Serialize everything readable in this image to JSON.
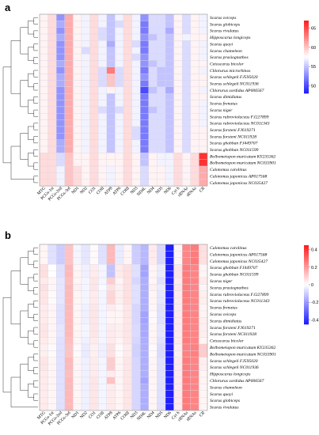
{
  "chart_data": [
    {
      "panel": "a",
      "type": "heatmap",
      "columns": [
        "MTG",
        "PCGs-1st",
        "PCGs-2nd",
        "PCGs-3rd",
        "ND1",
        "ND2",
        "CO1",
        "COII",
        "ATP8",
        "ATP6",
        "COIII",
        "ND3",
        "ND4L",
        "ND4",
        "ND5",
        "ND6",
        "Cyt b",
        "rRNAs",
        "tRNAs",
        "CR"
      ],
      "rows": [
        "Scarus oviceps",
        "Scarus globiceps",
        "Scarus rivulatus",
        "Hipposcarus longiceps",
        "Scarus quoyi",
        "Scarus chameleon",
        "Scarus prasiognathos",
        "Cetoscarus bicolor",
        "Chlorurus microrhinos",
        "Scarus schlegeli FJ595020",
        "Scarus schlegeli NC011936",
        "Chlorurus sordidus AP006567",
        "Scarus dimidiatus",
        "Scarus frenatus",
        "Scarus niger",
        "Scarus rubroviolaceus FJ227899",
        "Scarus rubroviolaceus NC011343",
        "Scarus forsteni FJ619271",
        "Scarus forsteni NC011928",
        "Scarus ghobban FJ449707",
        "Scarus ghobban NC011599",
        "Bolbometopon muricatum KY235362",
        "Bolbometopon muricatum NC033901",
        "Calotomus carolinus",
        "Calotomus japonicus AP017568",
        "Calotomus japonicus NC035427"
      ],
      "colorbar": {
        "ticks": [
          65,
          60,
          55,
          50
        ],
        "min": 48,
        "max": 67,
        "low_color": "#1a1aff",
        "mid_color": "#ffffff",
        "high_color": "#ff1a1a"
      },
      "values": [
        [
          58,
          59,
          53,
          61,
          58,
          57,
          59,
          57,
          55,
          57,
          59,
          57,
          53,
          56,
          56,
          55,
          58,
          56,
          58,
          57
        ],
        [
          58,
          59,
          54,
          61,
          58,
          57,
          59,
          57,
          55,
          56,
          59,
          57,
          52,
          56,
          56,
          55,
          58,
          56,
          58,
          57
        ],
        [
          58,
          59,
          53,
          61,
          58,
          57,
          59,
          56,
          55,
          57,
          59,
          57,
          52,
          56,
          56,
          54,
          58,
          56,
          58,
          57
        ],
        [
          58,
          59,
          54,
          61,
          58,
          57,
          59,
          56,
          55,
          57,
          59,
          57,
          53,
          55,
          56,
          55,
          58,
          57,
          58,
          58
        ],
        [
          58,
          59,
          53,
          61,
          58,
          57,
          59,
          57,
          54,
          57,
          59,
          56,
          52,
          56,
          56,
          55,
          58,
          56,
          58,
          57
        ],
        [
          58,
          59,
          53,
          61,
          58,
          56,
          59,
          57,
          55,
          57,
          59,
          57,
          52,
          56,
          56,
          55,
          58,
          56,
          58,
          57
        ],
        [
          58,
          59,
          53,
          61,
          58,
          57,
          59,
          57,
          55,
          57,
          59,
          56,
          53,
          56,
          56,
          55,
          58,
          56,
          58,
          57
        ],
        [
          58,
          59,
          54,
          61,
          58,
          57,
          59,
          57,
          55,
          57,
          59,
          57,
          53,
          55,
          56,
          55,
          58,
          56,
          58,
          58
        ],
        [
          58,
          59,
          53,
          61,
          58,
          57,
          59,
          56,
          63,
          56,
          59,
          57,
          52,
          56,
          55,
          55,
          58,
          56,
          58,
          57
        ],
        [
          58,
          59,
          54,
          61,
          58,
          57,
          59,
          56,
          60,
          56,
          59,
          57,
          53,
          56,
          55,
          55,
          58,
          56,
          58,
          58
        ],
        [
          58,
          59,
          54,
          61,
          58,
          57,
          59,
          56,
          60,
          56,
          59,
          57,
          52,
          56,
          55,
          55,
          58,
          56,
          58,
          58
        ],
        [
          58,
          59,
          53,
          61,
          58,
          57,
          59,
          57,
          58,
          57,
          59,
          57,
          50,
          55,
          56,
          54,
          58,
          56,
          58,
          57
        ],
        [
          58,
          59,
          53,
          61,
          58,
          57,
          59,
          57,
          55,
          57,
          59,
          57,
          52,
          56,
          56,
          55,
          58,
          56,
          58,
          58
        ],
        [
          58,
          59,
          53,
          61,
          58,
          57,
          59,
          57,
          55,
          57,
          59,
          57,
          52,
          56,
          56,
          55,
          58,
          56,
          58,
          57
        ],
        [
          58,
          59,
          53,
          61,
          58,
          57,
          59,
          56,
          55,
          56,
          59,
          57,
          52,
          55,
          56,
          55,
          58,
          56,
          58,
          57
        ],
        [
          58,
          59,
          53,
          61,
          58,
          57,
          59,
          57,
          55,
          57,
          59,
          57,
          52,
          56,
          56,
          55,
          58,
          56,
          58,
          57
        ],
        [
          58,
          59,
          53,
          61,
          58,
          57,
          59,
          57,
          55,
          57,
          59,
          57,
          52,
          56,
          56,
          55,
          58,
          56,
          58,
          57
        ],
        [
          58,
          59,
          53,
          61,
          58,
          57,
          59,
          57,
          55,
          57,
          59,
          56,
          52,
          56,
          56,
          55,
          58,
          56,
          58,
          58
        ],
        [
          58,
          59,
          53,
          61,
          58,
          57,
          59,
          57,
          55,
          57,
          59,
          56,
          52,
          56,
          56,
          55,
          58,
          56,
          58,
          58
        ],
        [
          58,
          59,
          54,
          61,
          58,
          57,
          59,
          57,
          55,
          57,
          59,
          57,
          52,
          56,
          56,
          55,
          58,
          56,
          58,
          58
        ],
        [
          58,
          59,
          54,
          61,
          58,
          57,
          59,
          57,
          55,
          57,
          59,
          57,
          52,
          56,
          56,
          55,
          58,
          56,
          58,
          58
        ],
        [
          59,
          59,
          56,
          60,
          58,
          58,
          59,
          58,
          58,
          58,
          59,
          58,
          55,
          58,
          57,
          57,
          59,
          58,
          59,
          66
        ],
        [
          59,
          59,
          56,
          60,
          58,
          58,
          59,
          58,
          58,
          58,
          59,
          58,
          55,
          58,
          57,
          57,
          59,
          58,
          59,
          66
        ],
        [
          59,
          59,
          57,
          60,
          59,
          58,
          59,
          58,
          57,
          58,
          59,
          58,
          56,
          58,
          58,
          57,
          59,
          58,
          59,
          61
        ],
        [
          59,
          59,
          57,
          60,
          59,
          58,
          59,
          58,
          57,
          58,
          59,
          58,
          56,
          58,
          58,
          57,
          59,
          58,
          59,
          61
        ],
        [
          59,
          59,
          57,
          60,
          59,
          58,
          59,
          58,
          57,
          58,
          59,
          58,
          56,
          58,
          58,
          57,
          59,
          58,
          59,
          61
        ]
      ]
    },
    {
      "panel": "b",
      "type": "heatmap",
      "columns": [
        "MTG",
        "PCGs-1st",
        "PCGs-2nd",
        "PCGs-3rd",
        "ND1",
        "ND2",
        "CO1",
        "COII",
        "ATP8",
        "ATP6",
        "COIII",
        "ND3",
        "ND4L",
        "ND4",
        "ND5",
        "ND6",
        "Cyt b",
        "rRNAs",
        "tRNAs",
        "CR"
      ],
      "rows": [
        "Calotomus carolinus",
        "Calotomus japonicus AP017568",
        "Calotomus japonicus NC035427",
        "Scarus ghobban FJ449707",
        "Scarus ghobban NC011599",
        "Scarus niger",
        "Scarus prasiognathos",
        "Scarus rubroviolaceus FJ227899",
        "Scarus rubroviolaceus NC011343",
        "Scarus frenatus",
        "Scarus oviceps",
        "Scarus dimidiatus",
        "Scarus forsteni FJ619271",
        "Scarus forsteni NC011928",
        "Cetoscarus bicolor",
        "Bolbometopon muricatum KY235362",
        "Bolbometopon muricatum NC033901",
        "Scarus schlegeli FJ595020",
        "Scarus schlegeli NC011936",
        "Hipposcarus longiceps",
        "Chlorurus sordidus AP006567",
        "Scarus chameleon",
        "Scarus quoyi",
        "Scarus globiceps",
        "Scarus rivulatus"
      ],
      "colorbar": {
        "ticks": [
          0.4,
          0.2,
          0,
          -0.2,
          -0.4
        ],
        "min": -0.45,
        "max": 0.45,
        "low_color": "#1a1aff",
        "mid_color": "#ffffff",
        "high_color": "#ff1a1a"
      },
      "values": [
        [
          0.02,
          -0.06,
          -0.1,
          0.12,
          -0.02,
          -0.05,
          0.01,
          -0.06,
          0.14,
          -0.04,
          0.02,
          -0.1,
          -0.14,
          0.04,
          -0.08,
          -0.44,
          0.02,
          0.24,
          0.26,
          0.06
        ],
        [
          0.02,
          -0.06,
          -0.1,
          0.12,
          -0.02,
          -0.05,
          0.01,
          -0.06,
          0.14,
          -0.04,
          0.02,
          -0.1,
          -0.14,
          0.04,
          -0.08,
          -0.44,
          0.02,
          0.24,
          0.26,
          0.06
        ],
        [
          0.02,
          -0.06,
          -0.1,
          0.12,
          -0.02,
          -0.05,
          0.01,
          -0.06,
          0.14,
          -0.04,
          0.02,
          -0.1,
          -0.14,
          0.04,
          -0.08,
          -0.44,
          0.02,
          0.24,
          0.26,
          0.06
        ],
        [
          0.06,
          0.0,
          -0.06,
          0.14,
          0.02,
          -0.03,
          0.04,
          -0.02,
          -0.12,
          0.04,
          0.06,
          -0.06,
          -0.18,
          0.02,
          -0.04,
          -0.44,
          0.05,
          0.26,
          0.24,
          0.02
        ],
        [
          0.06,
          0.0,
          -0.06,
          0.14,
          0.02,
          -0.03,
          0.04,
          -0.02,
          -0.12,
          0.04,
          0.06,
          -0.06,
          -0.18,
          0.02,
          -0.04,
          -0.44,
          0.05,
          0.26,
          0.24,
          0.02
        ],
        [
          0.04,
          0.02,
          -0.05,
          0.13,
          0.02,
          -0.02,
          0.05,
          -0.02,
          0.1,
          0.02,
          0.06,
          -0.08,
          -0.16,
          0.02,
          -0.06,
          -0.44,
          0.04,
          0.26,
          0.24,
          0.04
        ],
        [
          0.06,
          0.02,
          -0.05,
          0.14,
          0.03,
          -0.02,
          0.05,
          -0.01,
          0.06,
          0.03,
          0.06,
          -0.06,
          -0.16,
          0.03,
          -0.04,
          -0.44,
          0.05,
          0.26,
          0.24,
          0.02
        ],
        [
          0.05,
          0.01,
          -0.05,
          0.14,
          0.02,
          -0.02,
          0.04,
          -0.02,
          0.08,
          0.03,
          0.06,
          -0.06,
          -0.16,
          0.02,
          -0.05,
          -0.44,
          0.04,
          0.26,
          0.24,
          0.03
        ],
        [
          0.05,
          0.01,
          -0.05,
          0.14,
          0.02,
          -0.02,
          0.04,
          -0.02,
          0.08,
          0.03,
          0.06,
          -0.06,
          -0.16,
          0.02,
          -0.05,
          -0.44,
          0.04,
          0.26,
          0.24,
          0.03
        ],
        [
          0.04,
          0.02,
          -0.06,
          0.14,
          0.02,
          -0.03,
          0.05,
          -0.02,
          0.04,
          0.02,
          0.05,
          -0.08,
          -0.16,
          0.02,
          -0.06,
          -0.44,
          0.04,
          0.26,
          0.24,
          0.02
        ],
        [
          0.04,
          0.02,
          -0.06,
          0.14,
          0.02,
          -0.03,
          0.05,
          -0.02,
          0.02,
          0.02,
          0.05,
          -0.08,
          -0.18,
          0.01,
          -0.06,
          -0.44,
          0.04,
          0.26,
          0.24,
          0.02
        ],
        [
          0.04,
          0.02,
          -0.06,
          0.14,
          0.02,
          -0.03,
          0.05,
          -0.02,
          0.02,
          0.02,
          0.05,
          -0.08,
          -0.18,
          0.01,
          -0.06,
          -0.44,
          0.04,
          0.26,
          0.24,
          0.03
        ],
        [
          0.05,
          0.02,
          -0.05,
          0.14,
          0.02,
          -0.02,
          0.05,
          -0.02,
          0.04,
          0.03,
          0.05,
          -0.07,
          -0.17,
          0.02,
          -0.05,
          -0.44,
          0.04,
          0.26,
          0.24,
          0.03
        ],
        [
          0.05,
          0.02,
          -0.05,
          0.14,
          0.02,
          -0.02,
          0.05,
          -0.02,
          0.04,
          0.03,
          0.05,
          -0.07,
          -0.17,
          0.02,
          -0.05,
          -0.44,
          0.04,
          0.26,
          0.24,
          0.03
        ],
        [
          0.04,
          0.02,
          -0.06,
          0.13,
          0.02,
          -0.03,
          0.04,
          -0.02,
          0.04,
          0.02,
          0.05,
          -0.08,
          -0.16,
          0.02,
          -0.06,
          -0.44,
          0.04,
          0.26,
          0.24,
          0.02
        ],
        [
          0.03,
          0.01,
          -0.06,
          0.12,
          0.01,
          -0.04,
          0.03,
          -0.03,
          0.06,
          0.01,
          0.04,
          -0.09,
          -0.16,
          0.01,
          -0.07,
          -0.44,
          0.03,
          0.25,
          0.25,
          0.1
        ],
        [
          0.03,
          0.01,
          -0.06,
          0.12,
          0.01,
          -0.04,
          0.03,
          -0.03,
          0.06,
          0.01,
          0.04,
          -0.09,
          -0.16,
          0.01,
          -0.07,
          -0.44,
          0.03,
          0.25,
          0.25,
          0.1
        ],
        [
          0.05,
          0.02,
          -0.06,
          0.14,
          0.02,
          -0.03,
          0.04,
          -0.02,
          0.1,
          0.02,
          0.05,
          -0.08,
          -0.16,
          0.02,
          -0.06,
          -0.44,
          0.04,
          0.26,
          0.24,
          0.03
        ],
        [
          0.05,
          0.02,
          -0.06,
          0.14,
          0.02,
          -0.03,
          0.04,
          -0.02,
          0.1,
          0.02,
          0.05,
          -0.08,
          -0.16,
          0.02,
          -0.06,
          -0.44,
          0.04,
          0.26,
          0.24,
          0.03
        ],
        [
          0.04,
          0.02,
          -0.06,
          0.13,
          0.02,
          -0.03,
          0.04,
          -0.02,
          0.04,
          0.02,
          0.05,
          -0.08,
          -0.16,
          0.02,
          -0.06,
          -0.44,
          0.04,
          0.26,
          0.24,
          0.02
        ],
        [
          0.04,
          0.02,
          -0.06,
          0.14,
          0.02,
          -0.03,
          0.05,
          -0.02,
          0.12,
          0.02,
          0.05,
          -0.08,
          -0.18,
          0.02,
          -0.06,
          -0.44,
          0.04,
          0.26,
          0.24,
          0.02
        ],
        [
          0.04,
          0.02,
          -0.06,
          0.14,
          0.02,
          -0.03,
          0.05,
          -0.02,
          0.04,
          0.02,
          0.05,
          -0.08,
          -0.16,
          0.02,
          -0.06,
          -0.44,
          0.04,
          0.26,
          0.24,
          0.02
        ],
        [
          0.04,
          0.02,
          -0.06,
          0.14,
          0.02,
          -0.03,
          0.05,
          -0.02,
          0.04,
          0.02,
          0.05,
          -0.08,
          -0.16,
          0.02,
          -0.06,
          -0.44,
          0.04,
          0.26,
          0.24,
          0.02
        ],
        [
          0.04,
          0.02,
          -0.06,
          0.14,
          0.02,
          -0.03,
          0.05,
          -0.02,
          0.04,
          0.02,
          0.05,
          -0.08,
          -0.16,
          0.02,
          -0.06,
          -0.44,
          0.04,
          0.26,
          0.24,
          0.02
        ],
        [
          0.04,
          0.02,
          -0.06,
          0.14,
          0.02,
          -0.03,
          0.05,
          -0.02,
          0.04,
          0.02,
          0.05,
          -0.08,
          -0.16,
          0.02,
          -0.06,
          -0.44,
          0.04,
          0.26,
          0.24,
          0.02
        ]
      ]
    }
  ]
}
